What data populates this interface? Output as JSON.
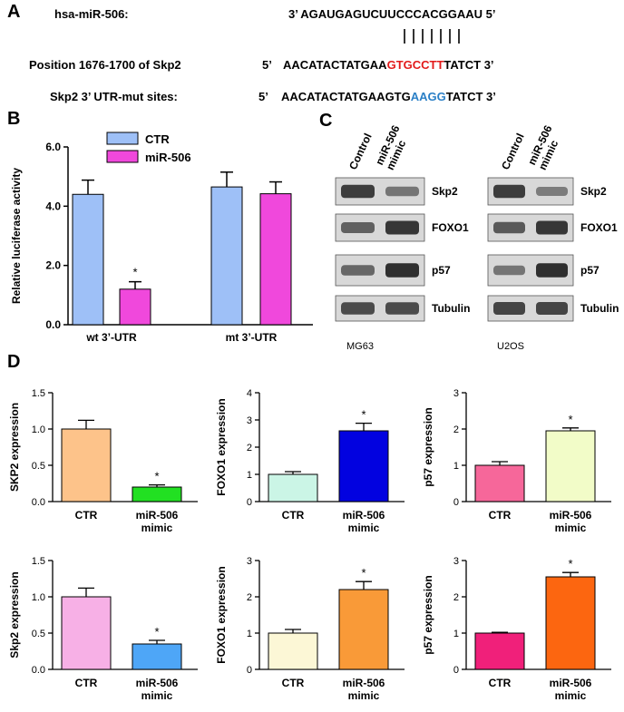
{
  "panel_a": {
    "letter": "A",
    "mirna_label": "hsa-miR-506:",
    "mirna_seq": "3’ AGAUGAGUCUUCCCACGGAAU 5’",
    "wt_label": "Position 1676-1700 of  Skp2",
    "wt_prefix": "5’",
    "wt_seq_a": "AACATACTATGAA",
    "wt_seq_b": "GTGCCTT",
    "wt_seq_c": "TATCT 3’",
    "mut_label": "Skp2 3’ UTR-mut sites:",
    "mut_prefix": "5’",
    "mut_seq_a": "AACATACTATGAAGTG",
    "mut_seq_b": "AAGG",
    "mut_seq_c": "TATCT  3’",
    "colors": {
      "seed": "#e21a1a",
      "mut": "#2a7fc6"
    }
  },
  "panel_b": {
    "letter": "B"
  },
  "panel_c": {
    "letter": "C",
    "lanes": [
      "Control",
      "miR-506 mimic"
    ],
    "rows": [
      "Skp2",
      "FOXO1",
      "p57",
      "Tubulin"
    ],
    "cell_lines": [
      "MG63",
      "U2OS"
    ]
  },
  "panel_d": {
    "letter": "D"
  },
  "chart_data": [
    {
      "id": "B",
      "type": "bar",
      "categories": [
        "wt 3’-UTR",
        "mt 3’-UTR"
      ],
      "series": [
        {
          "name": "CTR",
          "values": [
            4.4,
            4.65
          ],
          "errors": [
            0.48,
            0.5
          ],
          "color": "#9ec0f7"
        },
        {
          "name": "miR-506",
          "values": [
            1.2,
            4.42
          ],
          "errors": [
            0.25,
            0.4
          ],
          "color": "#f048dc"
        }
      ],
      "ylabel": "Relative luciferase activity",
      "ylim": [
        0,
        6
      ],
      "yticks": [
        "0.0",
        "2.0",
        "4.0",
        "6.0"
      ],
      "legend": "top-left",
      "significance": [
        "",
        "*",
        "",
        ""
      ]
    },
    {
      "id": "D1",
      "type": "bar",
      "categories": [
        "CTR",
        "miR-506 mimic"
      ],
      "values": [
        1.0,
        0.2
      ],
      "errors": [
        0.12,
        0.03
      ],
      "colors": [
        "#fdc38a",
        "#22e022"
      ],
      "ylabel": "SKP2  expression",
      "ylim": [
        0,
        1.5
      ],
      "yticks": [
        "0.0",
        "0.5",
        "1.0",
        "1.5"
      ],
      "significance": [
        "",
        "*"
      ]
    },
    {
      "id": "D2",
      "type": "bar",
      "categories": [
        "CTR",
        "miR-506 mimic"
      ],
      "values": [
        1.0,
        2.6
      ],
      "errors": [
        0.1,
        0.28
      ],
      "colors": [
        "#cbf5e6",
        "#0202e0"
      ],
      "ylabel": "FOXO1  expression",
      "ylim": [
        0,
        4
      ],
      "yticks": [
        "0",
        "1",
        "2",
        "3",
        "4"
      ],
      "significance": [
        "",
        "*"
      ]
    },
    {
      "id": "D3",
      "type": "bar",
      "categories": [
        "CTR",
        "miR-506 mimic"
      ],
      "values": [
        1.0,
        1.95
      ],
      "errors": [
        0.1,
        0.08
      ],
      "colors": [
        "#f6679a",
        "#f2fcc8"
      ],
      "ylabel": "p57 expression",
      "ylim": [
        0,
        3
      ],
      "yticks": [
        "0",
        "1",
        "2",
        "3"
      ],
      "significance": [
        "",
        "*"
      ]
    },
    {
      "id": "D4",
      "type": "bar",
      "categories": [
        "CTR",
        "miR-506 mimic"
      ],
      "values": [
        1.0,
        0.35
      ],
      "errors": [
        0.12,
        0.05
      ],
      "colors": [
        "#f7b0e6",
        "#4ea6f7"
      ],
      "ylabel": "Skp2 expression",
      "ylim": [
        0,
        1.5
      ],
      "yticks": [
        "0.0",
        "0.5",
        "1.0",
        "1.5"
      ],
      "significance": [
        "",
        "*"
      ]
    },
    {
      "id": "D5",
      "type": "bar",
      "categories": [
        "CTR",
        "miR-506 mimic"
      ],
      "values": [
        1.0,
        2.2
      ],
      "errors": [
        0.1,
        0.22
      ],
      "colors": [
        "#fcf7d6",
        "#f99a38"
      ],
      "ylabel": "FOXO1  expression",
      "ylim": [
        0,
        3
      ],
      "yticks": [
        "0",
        "1",
        "2",
        "3"
      ],
      "significance": [
        "",
        "*"
      ]
    },
    {
      "id": "D6",
      "type": "bar",
      "categories": [
        "CTR",
        "miR-506 mimic"
      ],
      "values": [
        1.0,
        2.55
      ],
      "errors": [
        0.02,
        0.12
      ],
      "colors": [
        "#f0207a",
        "#fc6610"
      ],
      "ylabel": "p57 expression",
      "ylim": [
        0,
        3
      ],
      "yticks": [
        "0",
        "1",
        "2",
        "3"
      ],
      "significance": [
        "",
        "*"
      ]
    }
  ]
}
